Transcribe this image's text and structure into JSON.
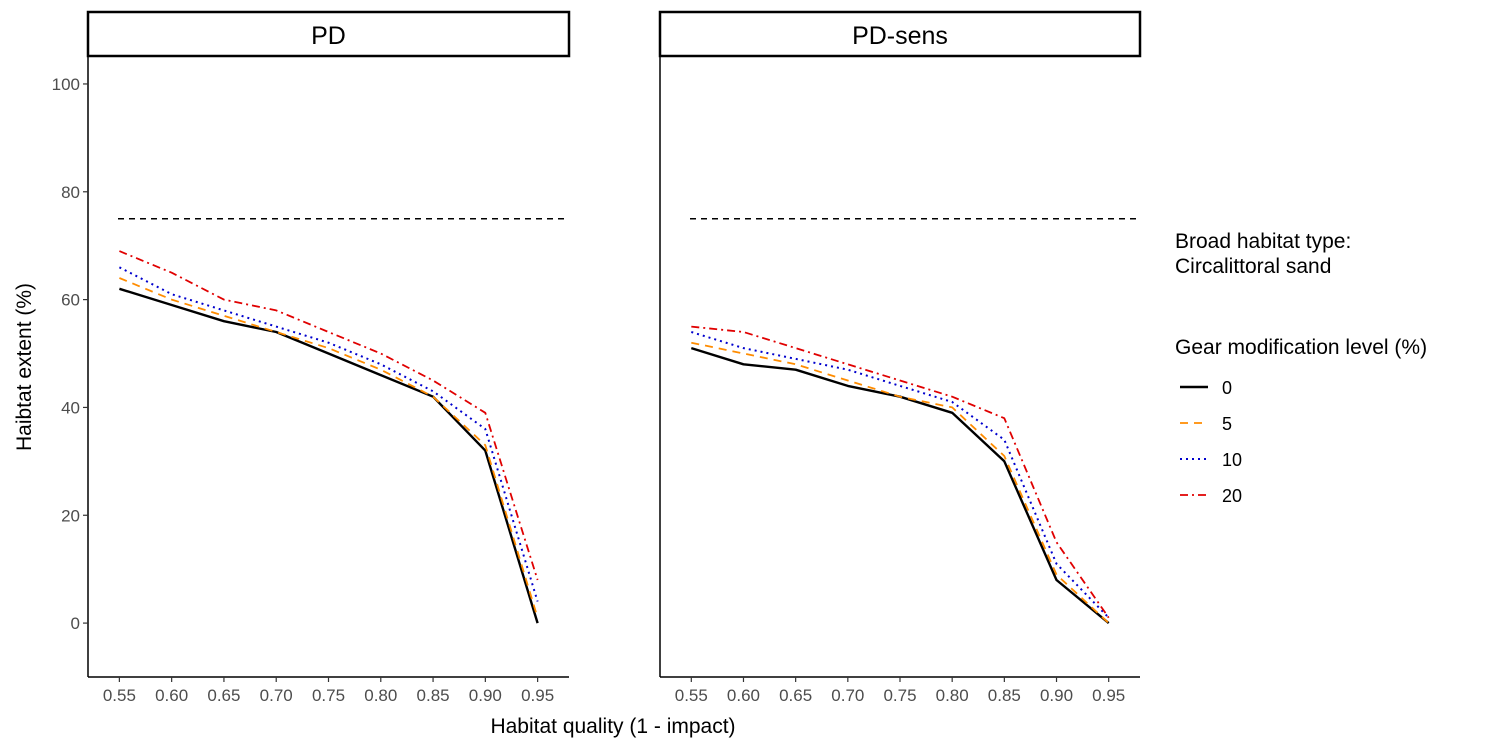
{
  "chart_data": {
    "type": "line",
    "xlabel": "Habitat quality (1 - impact)",
    "ylabel": "Haibtat extent (%)",
    "ylim": [
      -10,
      105
    ],
    "yticks": [
      0,
      20,
      40,
      60,
      80,
      100
    ],
    "xlim": [
      0.52,
      0.98
    ],
    "xticks": [
      0.55,
      0.6,
      0.65,
      0.7,
      0.75,
      0.8,
      0.85,
      0.9,
      0.95
    ],
    "xtick_labels": [
      "0.55",
      "0.60",
      "0.65",
      "0.70",
      "0.75",
      "0.80",
      "0.85",
      "0.90",
      "0.95"
    ],
    "reference_line": 75,
    "legend": {
      "title_line1": "Broad habitat type:",
      "title_line2": "Circalittoral sand",
      "gear_title": "Gear modification level (%)",
      "position": "right"
    },
    "series_styles": [
      {
        "name": "0",
        "color": "#000000",
        "dash": "",
        "width": 2.4
      },
      {
        "name": "5",
        "color": "#FF8C00",
        "dash": "8,6",
        "width": 1.8
      },
      {
        "name": "10",
        "color": "#0000CD",
        "dash": "2,4",
        "width": 2.0
      },
      {
        "name": "20",
        "color": "#E00000",
        "dash": "8,4,2,4",
        "width": 1.8
      }
    ],
    "panels": [
      {
        "title": "PD",
        "x": [
          0.55,
          0.6,
          0.65,
          0.7,
          0.75,
          0.8,
          0.85,
          0.9,
          0.95
        ],
        "series": [
          {
            "name": "0",
            "values": [
              62,
              59,
              56,
              54,
              50,
              46,
              42,
              32,
              0
            ]
          },
          {
            "name": "5",
            "values": [
              64,
              60,
              57,
              54,
              51,
              47,
              42,
              33,
              1
            ]
          },
          {
            "name": "10",
            "values": [
              66,
              61,
              58,
              55,
              52,
              48,
              43,
              36,
              4
            ]
          },
          {
            "name": "20",
            "values": [
              69,
              65,
              60,
              58,
              54,
              50,
              45,
              39,
              8
            ]
          }
        ]
      },
      {
        "title": "PD-sens",
        "x": [
          0.55,
          0.6,
          0.65,
          0.7,
          0.75,
          0.8,
          0.85,
          0.9,
          0.95
        ],
        "series": [
          {
            "name": "0",
            "values": [
              51,
              48,
              47,
              44,
              42,
              39,
              30,
              8,
              0
            ]
          },
          {
            "name": "5",
            "values": [
              52,
              50,
              48,
              45,
              42,
              40,
              31,
              9,
              0
            ]
          },
          {
            "name": "10",
            "values": [
              54,
              51,
              49,
              47,
              44,
              41,
              34,
              11,
              1
            ]
          },
          {
            "name": "20",
            "values": [
              55,
              54,
              51,
              48,
              45,
              42,
              38,
              15,
              1
            ]
          }
        ]
      }
    ]
  }
}
